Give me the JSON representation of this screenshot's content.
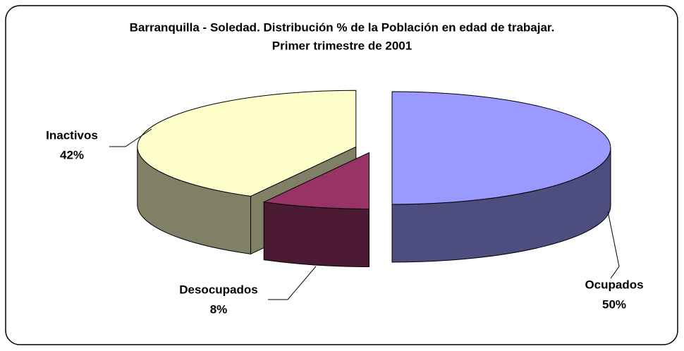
{
  "chart_data": {
    "type": "pie3d",
    "title": "Barranquilla - Soledad.  Distribución % de la Población en edad de trabajar.",
    "subtitle": "Primer trimestre de 2001",
    "categories": [
      "Ocupados",
      "Desocupados",
      "Inactivos"
    ],
    "values": [
      50,
      8,
      42
    ],
    "value_labels": [
      "50%",
      "8%",
      "42%"
    ],
    "colors": [
      "#9999ff",
      "#993366",
      "#ffffcc"
    ],
    "side_colors": [
      "#4d4d80",
      "#4d1a33",
      "#808066"
    ]
  }
}
